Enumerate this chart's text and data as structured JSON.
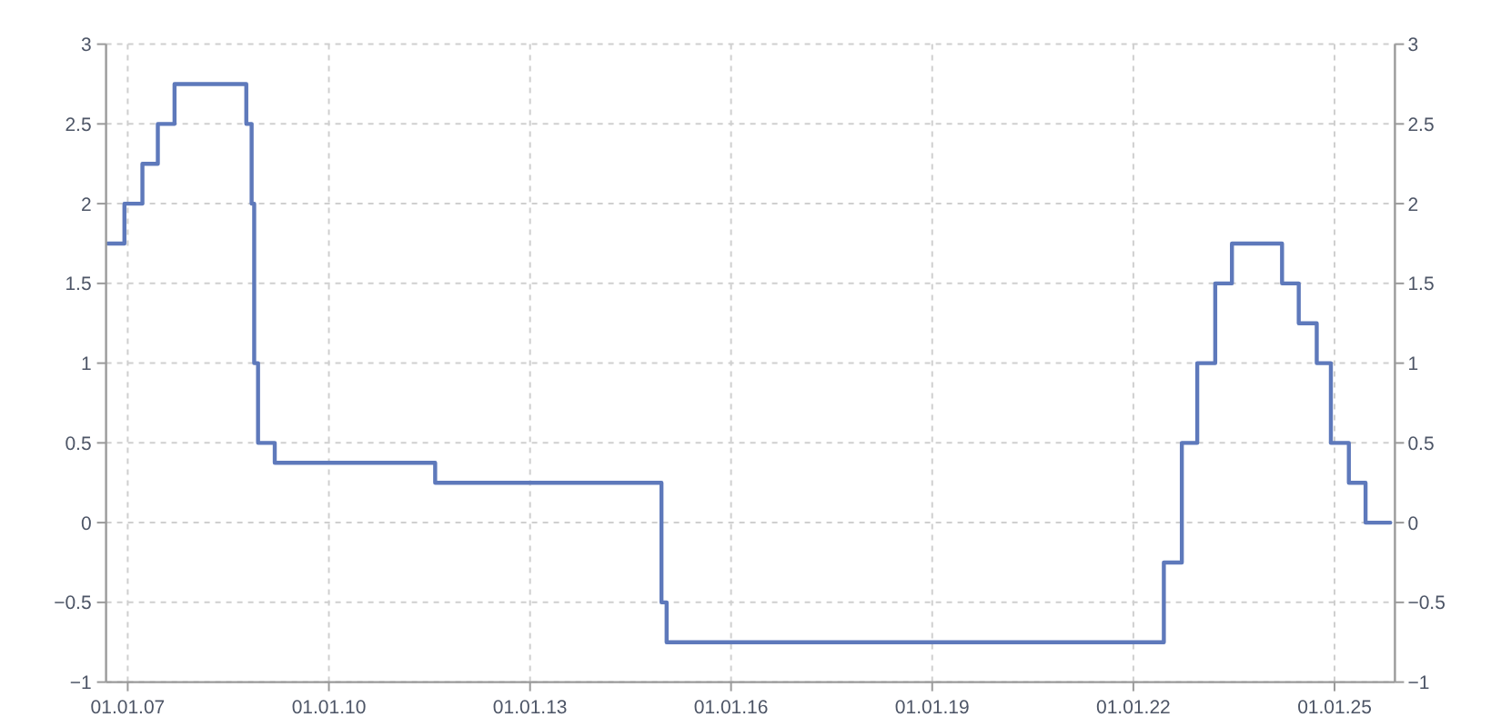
{
  "chart_data": {
    "type": "step",
    "color": "#5e79bb",
    "x": [
      "2006-09-14",
      "2006-12-14",
      "2007-03-22",
      "2007-06-14",
      "2007-09-13",
      "2008-10-08",
      "2008-11-06",
      "2008-11-20",
      "2008-12-11",
      "2009-03-12",
      "2011-08-03",
      "2014-12-18",
      "2015-01-15",
      "2022-06-16",
      "2022-09-22",
      "2022-12-15",
      "2023-03-23",
      "2023-06-22",
      "2024-03-21",
      "2024-06-20",
      "2024-09-26",
      "2024-12-12",
      "2025-03-20",
      "2025-06-19",
      "2025-11-01"
    ],
    "values": [
      1.75,
      2.0,
      2.25,
      2.5,
      2.75,
      2.5,
      2.0,
      1.0,
      0.5,
      0.375,
      0.25,
      -0.5,
      -0.75,
      -0.25,
      0.5,
      1.0,
      1.5,
      1.75,
      1.5,
      1.25,
      1.0,
      0.5,
      0.25,
      0,
      0
    ],
    "xlim": [
      "2006-09-05",
      "2025-11-26"
    ],
    "xticks": [
      {
        "value": "2007-01-01",
        "label": "01.01.07"
      },
      {
        "value": "2010-01-01",
        "label": "01.01.10"
      },
      {
        "value": "2013-01-01",
        "label": "01.01.13"
      },
      {
        "value": "2016-01-01",
        "label": "01.01.16"
      },
      {
        "value": "2019-01-01",
        "label": "01.01.19"
      },
      {
        "value": "2022-01-01",
        "label": "01.01.22"
      },
      {
        "value": "2025-01-01",
        "label": "01.01.25"
      }
    ],
    "ylim": [
      -1,
      3
    ],
    "yticks": [
      {
        "value": -1,
        "label": "−1"
      },
      {
        "value": -0.5,
        "label": "−0.5"
      },
      0,
      0.5,
      1,
      1.5,
      2,
      2.5,
      3
    ],
    "y2lim": [
      -1,
      3
    ],
    "y2ticks": [
      {
        "value": -1,
        "label": "−1"
      },
      {
        "value": -0.5,
        "label": "−0.5"
      },
      0,
      0.5,
      1,
      1.5,
      2,
      2.5,
      3
    ],
    "grid": true,
    "line_style": "solid"
  }
}
